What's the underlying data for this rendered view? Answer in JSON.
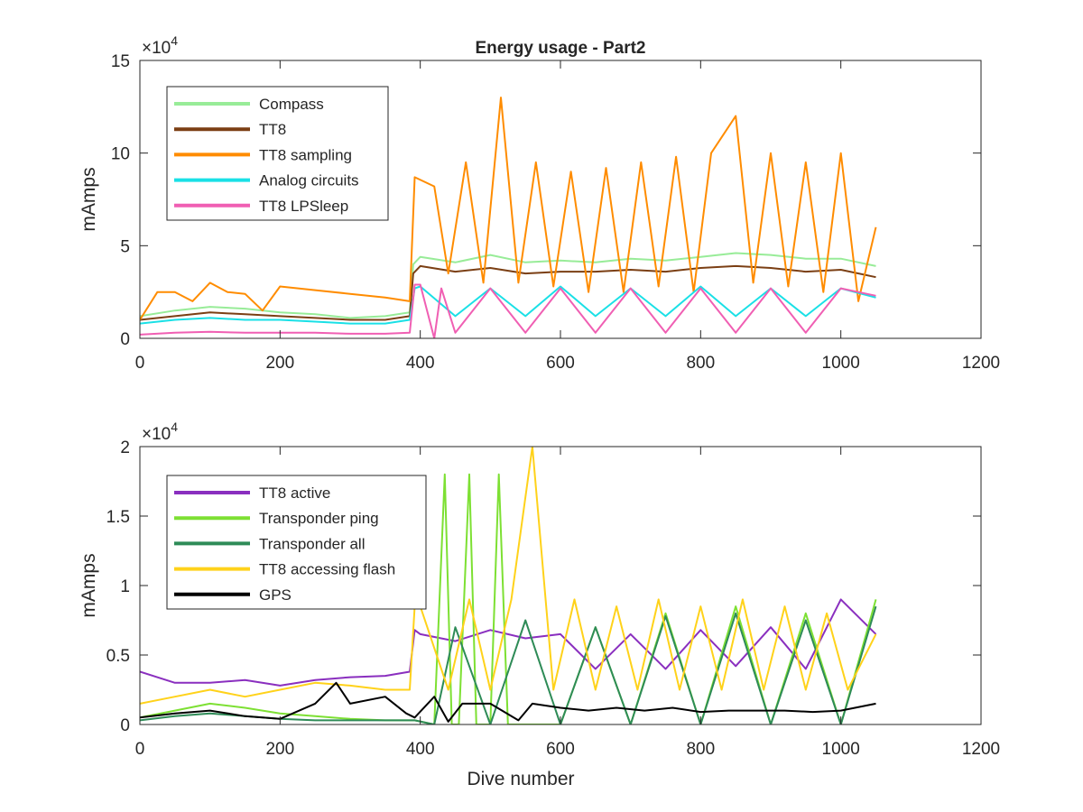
{
  "chart_data": [
    {
      "type": "line",
      "title": "Energy usage - Part2",
      "xlabel": "",
      "ylabel": "mAmps",
      "exponent_label": "×10",
      "exponent_power": "4",
      "xlim": [
        0,
        1200
      ],
      "ylim": [
        0,
        150000
      ],
      "xticks": [
        0,
        200,
        400,
        600,
        800,
        1000,
        1200
      ],
      "yticks": [
        0,
        50000,
        100000,
        150000
      ],
      "ytick_labels": [
        "0",
        "5",
        "10",
        "15"
      ],
      "legend_position": "top-left",
      "series": [
        {
          "name": "Compass",
          "color": "#98ec98",
          "x": [
            0,
            50,
            100,
            150,
            200,
            250,
            300,
            350,
            385,
            390,
            400,
            450,
            500,
            550,
            600,
            650,
            700,
            750,
            800,
            850,
            900,
            950,
            1000,
            1050
          ],
          "y": [
            12000,
            15000,
            17000,
            16000,
            14000,
            13000,
            11000,
            12000,
            14000,
            40000,
            44000,
            41000,
            45000,
            41000,
            42000,
            41000,
            43000,
            42000,
            44000,
            46000,
            45000,
            43000,
            43000,
            39000
          ]
        },
        {
          "name": "TT8",
          "color": "#7b3f14",
          "x": [
            0,
            50,
            100,
            150,
            200,
            250,
            300,
            350,
            385,
            390,
            400,
            450,
            500,
            550,
            600,
            650,
            700,
            750,
            800,
            850,
            900,
            950,
            1000,
            1050
          ],
          "y": [
            10000,
            12000,
            14000,
            13000,
            12000,
            11000,
            10000,
            10000,
            12000,
            35000,
            39000,
            36000,
            38000,
            35000,
            36000,
            36000,
            37000,
            36000,
            38000,
            39000,
            38000,
            36000,
            37000,
            33000
          ]
        },
        {
          "name": "TT8 sampling",
          "color": "#ff8c00",
          "x": [
            0,
            25,
            50,
            75,
            100,
            125,
            150,
            175,
            200,
            250,
            300,
            350,
            385,
            392,
            420,
            440,
            465,
            490,
            515,
            540,
            565,
            590,
            615,
            640,
            665,
            690,
            715,
            740,
            765,
            790,
            815,
            850,
            875,
            900,
            925,
            950,
            975,
            1000,
            1025,
            1050
          ],
          "y": [
            10000,
            25000,
            25000,
            20000,
            30000,
            25000,
            24000,
            15000,
            28000,
            26000,
            24000,
            22000,
            20000,
            87000,
            82000,
            35000,
            95000,
            30000,
            130000,
            30000,
            95000,
            28000,
            90000,
            25000,
            92000,
            25000,
            95000,
            28000,
            98000,
            25000,
            100000,
            120000,
            30000,
            100000,
            28000,
            95000,
            25000,
            100000,
            20000,
            60000
          ]
        },
        {
          "name": "Analog circuits",
          "color": "#1ae0e6",
          "x": [
            0,
            50,
            100,
            150,
            200,
            250,
            300,
            350,
            385,
            392,
            400,
            450,
            500,
            550,
            600,
            650,
            700,
            750,
            800,
            850,
            900,
            950,
            1000,
            1050
          ],
          "y": [
            8000,
            10000,
            11000,
            10000,
            10000,
            9000,
            8000,
            8000,
            10000,
            27000,
            28000,
            12000,
            27000,
            12000,
            28000,
            12000,
            27000,
            12000,
            28000,
            12000,
            27000,
            12000,
            27000,
            22000
          ]
        },
        {
          "name": "TT8 LPSleep",
          "color": "#f05fb3",
          "x": [
            0,
            50,
            100,
            150,
            200,
            250,
            300,
            350,
            385,
            392,
            400,
            420,
            430,
            450,
            500,
            550,
            600,
            650,
            700,
            750,
            800,
            850,
            900,
            950,
            1000,
            1050
          ],
          "y": [
            2000,
            3000,
            3500,
            3000,
            3000,
            3000,
            2500,
            2500,
            3000,
            29000,
            29000,
            0,
            27000,
            3000,
            27000,
            3000,
            27000,
            3000,
            27000,
            3000,
            27000,
            3000,
            27000,
            3000,
            27000,
            23000
          ]
        }
      ]
    },
    {
      "type": "line",
      "title": "",
      "xlabel": "Dive number",
      "ylabel": "mAmps",
      "exponent_label": "×10",
      "exponent_power": "4",
      "xlim": [
        0,
        1200
      ],
      "ylim": [
        0,
        20000
      ],
      "xticks": [
        0,
        200,
        400,
        600,
        800,
        1000,
        1200
      ],
      "yticks": [
        0,
        5000,
        10000,
        15000,
        20000
      ],
      "ytick_labels": [
        "0",
        "0.5",
        "1",
        "1.5",
        "2"
      ],
      "legend_position": "top-left",
      "series": [
        {
          "name": "TT8 active",
          "color": "#8a2fbf",
          "x": [
            0,
            50,
            100,
            150,
            200,
            250,
            300,
            350,
            385,
            392,
            400,
            450,
            500,
            550,
            600,
            650,
            700,
            750,
            800,
            850,
            900,
            950,
            1000,
            1050
          ],
          "y": [
            3800,
            3000,
            3000,
            3200,
            2800,
            3200,
            3400,
            3500,
            3800,
            6800,
            6500,
            6000,
            6800,
            6200,
            6500,
            4000,
            6500,
            4000,
            6800,
            4200,
            7000,
            4000,
            9000,
            6500
          ]
        },
        {
          "name": "Transponder ping",
          "color": "#7de033",
          "x": [
            0,
            50,
            100,
            150,
            200,
            250,
            300,
            350,
            392,
            420,
            435,
            445,
            455,
            470,
            480,
            500,
            512,
            525,
            560,
            600,
            650,
            700,
            750,
            800,
            850,
            900,
            950,
            1000,
            1050
          ],
          "y": [
            500,
            1000,
            1500,
            1200,
            800,
            600,
            400,
            300,
            300,
            0,
            18000,
            0,
            0,
            18000,
            0,
            0,
            18000,
            0,
            0,
            0,
            7000,
            0,
            8000,
            0,
            8500,
            0,
            8000,
            0,
            9000
          ]
        },
        {
          "name": "Transponder all",
          "color": "#2e8b57",
          "x": [
            0,
            50,
            100,
            150,
            200,
            250,
            300,
            350,
            392,
            420,
            450,
            500,
            550,
            600,
            650,
            700,
            750,
            800,
            850,
            900,
            950,
            1000,
            1050
          ],
          "y": [
            300,
            600,
            800,
            600,
            400,
            300,
            300,
            300,
            300,
            0,
            7000,
            0,
            7500,
            0,
            7000,
            0,
            7800,
            0,
            8000,
            0,
            7500,
            0,
            8500
          ]
        },
        {
          "name": "TT8 accessing flash",
          "color": "#ffd21a",
          "x": [
            0,
            50,
            100,
            150,
            200,
            250,
            300,
            350,
            385,
            392,
            400,
            440,
            470,
            500,
            530,
            560,
            590,
            620,
            650,
            680,
            710,
            740,
            770,
            800,
            830,
            860,
            890,
            920,
            950,
            980,
            1010,
            1050
          ],
          "y": [
            1500,
            2000,
            2500,
            2000,
            2500,
            3000,
            2800,
            2500,
            2500,
            8500,
            8500,
            2500,
            9000,
            2500,
            9000,
            20000,
            2500,
            9000,
            2500,
            8500,
            2500,
            9000,
            2500,
            8500,
            2500,
            9000,
            2500,
            8500,
            2500,
            8000,
            2500,
            6500
          ]
        },
        {
          "name": "GPS",
          "color": "#000000",
          "x": [
            0,
            50,
            100,
            150,
            200,
            250,
            280,
            300,
            350,
            380,
            392,
            420,
            440,
            460,
            500,
            540,
            560,
            600,
            640,
            680,
            720,
            760,
            800,
            840,
            880,
            920,
            960,
            1000,
            1050
          ],
          "y": [
            500,
            800,
            1000,
            600,
            400,
            1500,
            3000,
            1500,
            2000,
            800,
            500,
            2000,
            200,
            1500,
            1500,
            300,
            1500,
            1200,
            1000,
            1200,
            1000,
            1200,
            900,
            1000,
            1000,
            1000,
            900,
            1000,
            1500
          ]
        }
      ]
    }
  ]
}
